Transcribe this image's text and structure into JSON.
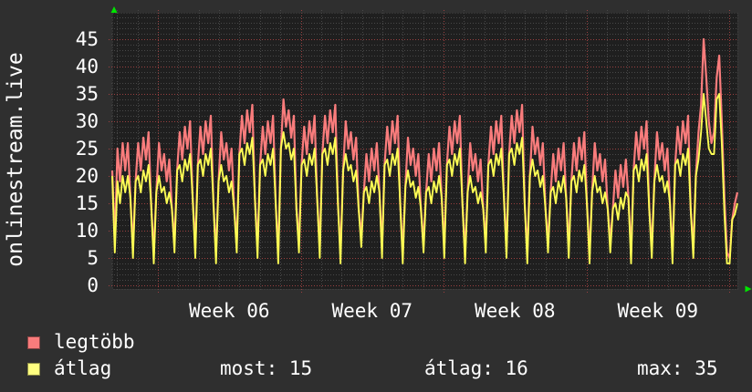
{
  "title": "onlinestream.live",
  "chart_data": {
    "type": "line",
    "vertical_label": "onlinestream.live",
    "x_tick_labels": [
      "Week 06",
      "Week 07",
      "Week 08",
      "Week 09"
    ],
    "y_ticks": [
      0,
      5,
      10,
      15,
      20,
      25,
      30,
      35,
      40,
      45
    ],
    "ylim": [
      0,
      50
    ],
    "grid": "dotted, minor every 1 unit and 1 day, major every 5 units and 1 week",
    "legend_position": "bottom-left",
    "series": [
      {
        "name": "legtöbb",
        "color": "#f97c7c",
        "values": [
          21,
          8,
          25,
          19,
          26,
          21,
          26,
          16,
          7,
          19,
          26,
          21,
          27,
          23,
          28,
          15,
          6,
          17,
          26,
          21,
          24,
          19,
          23,
          14,
          8,
          21,
          28,
          23,
          29,
          25,
          30,
          16,
          7,
          22,
          29,
          24,
          30,
          26,
          31,
          15,
          6,
          19,
          28,
          23,
          26,
          21,
          25,
          14,
          8,
          24,
          31,
          26,
          32,
          28,
          33,
          16,
          7,
          22,
          29,
          24,
          30,
          26,
          31,
          15,
          6,
          25,
          34,
          29,
          32,
          27,
          31,
          14,
          8,
          22,
          29,
          24,
          30,
          26,
          31,
          16,
          7,
          24,
          31,
          26,
          32,
          28,
          33,
          15,
          6,
          21,
          30,
          25,
          28,
          23,
          27,
          14,
          9,
          17,
          24,
          19,
          25,
          21,
          26,
          17,
          7,
          22,
          29,
          24,
          30,
          26,
          31,
          15,
          6,
          18,
          27,
          22,
          25,
          20,
          24,
          14,
          8,
          17,
          24,
          19,
          25,
          21,
          26,
          16,
          7,
          22,
          29,
          24,
          30,
          26,
          31,
          15,
          6,
          17,
          26,
          21,
          24,
          19,
          23,
          14,
          8,
          22,
          29,
          24,
          30,
          26,
          31,
          16,
          7,
          24,
          31,
          26,
          32,
          28,
          33,
          15,
          6,
          20,
          29,
          24,
          27,
          22,
          26,
          14,
          8,
          17,
          24,
          19,
          25,
          21,
          26,
          16,
          7,
          19,
          26,
          21,
          27,
          23,
          28,
          15,
          6,
          17,
          26,
          21,
          24,
          19,
          23,
          14,
          8,
          14,
          21,
          16,
          22,
          18,
          23,
          16,
          6,
          21,
          28,
          23,
          29,
          25,
          30,
          14,
          7,
          19,
          28,
          23,
          26,
          21,
          25,
          15,
          6,
          22,
          29,
          24,
          30,
          26,
          31,
          14,
          7,
          20,
          28,
          33,
          45,
          38,
          30,
          26,
          28,
          38,
          42,
          30,
          16,
          6,
          5,
          12,
          15,
          17
        ]
      },
      {
        "name": "átlag",
        "color": "#fdfd54",
        "values": [
          20,
          6,
          19,
          15,
          20,
          17,
          20,
          16,
          5,
          19,
          20,
          17,
          21,
          19,
          22,
          15,
          4,
          17,
          20,
          17,
          18,
          15,
          17,
          14,
          6,
          21,
          22,
          19,
          23,
          21,
          24,
          16,
          5,
          22,
          23,
          20,
          24,
          22,
          25,
          15,
          4,
          19,
          22,
          19,
          20,
          17,
          19,
          14,
          6,
          24,
          25,
          22,
          26,
          24,
          27,
          16,
          5,
          22,
          23,
          20,
          24,
          22,
          25,
          15,
          4,
          25,
          28,
          25,
          26,
          23,
          25,
          14,
          6,
          22,
          23,
          20,
          24,
          22,
          25,
          16,
          5,
          24,
          25,
          22,
          26,
          24,
          27,
          15,
          4,
          21,
          24,
          21,
          22,
          19,
          21,
          14,
          7,
          17,
          18,
          15,
          19,
          17,
          20,
          17,
          5,
          22,
          23,
          20,
          24,
          22,
          25,
          15,
          4,
          18,
          21,
          18,
          19,
          16,
          18,
          14,
          6,
          17,
          18,
          15,
          19,
          17,
          20,
          16,
          5,
          22,
          23,
          20,
          24,
          22,
          25,
          15,
          4,
          17,
          20,
          17,
          18,
          15,
          17,
          14,
          6,
          22,
          23,
          20,
          24,
          22,
          25,
          16,
          5,
          24,
          25,
          22,
          26,
          24,
          27,
          15,
          4,
          20,
          23,
          20,
          21,
          18,
          20,
          14,
          6,
          17,
          18,
          15,
          19,
          17,
          20,
          16,
          5,
          19,
          20,
          17,
          21,
          19,
          22,
          15,
          4,
          17,
          20,
          17,
          18,
          15,
          17,
          14,
          6,
          14,
          15,
          12,
          16,
          14,
          17,
          16,
          4,
          21,
          22,
          19,
          23,
          21,
          24,
          14,
          5,
          19,
          22,
          19,
          20,
          17,
          19,
          15,
          4,
          22,
          23,
          20,
          24,
          22,
          25,
          14,
          5,
          20,
          23,
          28,
          35,
          30,
          25,
          24,
          24,
          34,
          35,
          26,
          13,
          4,
          4,
          12,
          13,
          15
        ]
      }
    ]
  },
  "legend": {
    "series": [
      {
        "label": "legtöbb",
        "swatch_color": "#f97c7c"
      },
      {
        "label": "átlag",
        "swatch_color": "#ffff80"
      }
    ],
    "stats": [
      {
        "label": "most",
        "value": 15,
        "text": "most: 15"
      },
      {
        "label": "átlag",
        "value": 16,
        "text": "átlag: 16"
      },
      {
        "label": "max",
        "value": 35,
        "text": "max: 35"
      }
    ]
  },
  "colors": {
    "page_bg": "#2f2f2f",
    "plot_bg": "#1f1f1f",
    "grid_minor": "#484848",
    "grid_major": "#9b4040",
    "frame": "#4a4a4a",
    "arrow": "#00e500",
    "text": "#ffffff"
  }
}
